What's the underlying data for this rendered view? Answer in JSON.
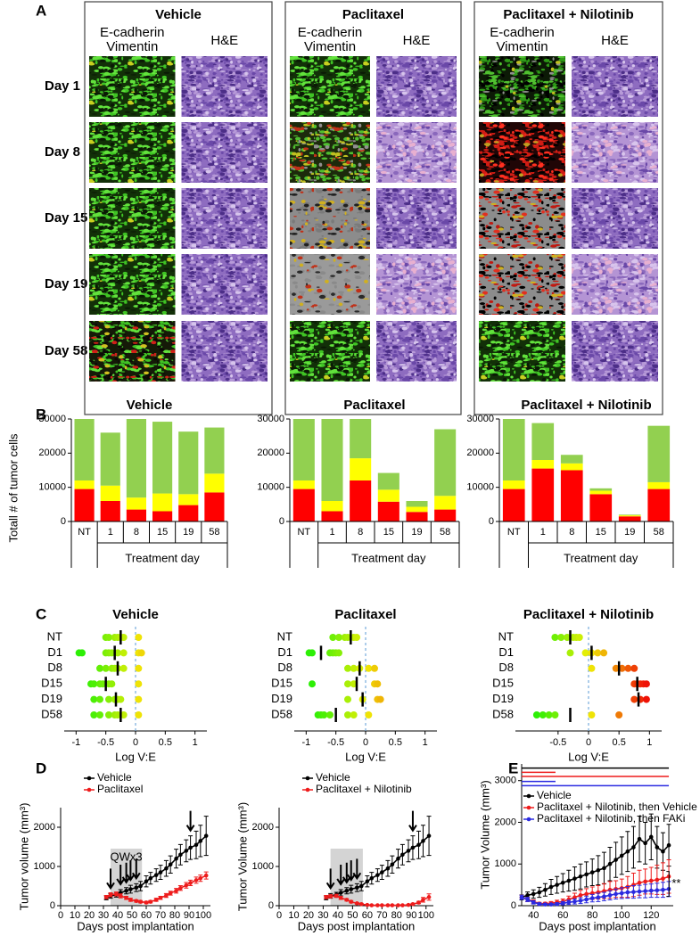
{
  "panel_labels": [
    "A",
    "B",
    "C",
    "D",
    "E"
  ],
  "image_grid": {
    "columns": [
      {
        "title": "Vehicle",
        "markers": [
          "E-cadherin",
          "Vimentin"
        ],
        "stain": "H&E"
      },
      {
        "title": "Paclitaxel",
        "markers": [
          "E-cadherin",
          "Vimentin"
        ],
        "stain": "H&E"
      },
      {
        "title": "Paclitaxel + Nilotinib",
        "markers": [
          "E-cadherin",
          "Vimentin"
        ],
        "stain": "H&E"
      }
    ],
    "rows": [
      "Day 1",
      "Day 8",
      "Day 15",
      "Day 19",
      "Day 58"
    ]
  },
  "chart_data": [
    {
      "type": "stacked_bar",
      "title": "Vehicle",
      "ylabel": "Totall # of tumor cells",
      "xlabel": "Treatment day",
      "categories": [
        "NT",
        "1",
        "8",
        "15",
        "19",
        "58"
      ],
      "ylim": [
        0,
        30000
      ],
      "yticks": [
        0,
        10000,
        20000,
        30000
      ],
      "series": [
        {
          "color": "#ff0000",
          "values": [
            9500,
            6000,
            3500,
            3000,
            4800,
            8500
          ]
        },
        {
          "color": "#ffff00",
          "values": [
            2500,
            4500,
            3500,
            5200,
            3200,
            5500
          ]
        },
        {
          "color": "#92d050",
          "values": [
            18000,
            15500,
            23000,
            21000,
            18300,
            13500
          ]
        }
      ]
    },
    {
      "type": "stacked_bar",
      "title": "Paclitaxel",
      "xlabel": "Treatment day",
      "categories": [
        "NT",
        "1",
        "8",
        "15",
        "19",
        "58"
      ],
      "ylim": [
        0,
        30000
      ],
      "yticks": [
        0,
        10000,
        20000,
        30000
      ],
      "series": [
        {
          "color": "#ff0000",
          "values": [
            9500,
            3000,
            12000,
            5800,
            2800,
            3500
          ]
        },
        {
          "color": "#ffff00",
          "values": [
            2500,
            3000,
            6500,
            3500,
            1500,
            4000
          ]
        },
        {
          "color": "#92d050",
          "values": [
            18000,
            24000,
            11500,
            4900,
            1700,
            19500
          ]
        }
      ]
    },
    {
      "type": "stacked_bar",
      "title": "Paclitaxel + Nilotinib",
      "xlabel": "Treatment day",
      "categories": [
        "NT",
        "1",
        "8",
        "15",
        "19",
        "58"
      ],
      "ylim": [
        0,
        30000
      ],
      "yticks": [
        0,
        10000,
        20000,
        30000
      ],
      "series": [
        {
          "color": "#ff0000",
          "values": [
            9500,
            15500,
            15000,
            8000,
            1500,
            9500
          ]
        },
        {
          "color": "#ffff00",
          "values": [
            2500,
            2500,
            2000,
            1000,
            300,
            2000
          ]
        },
        {
          "color": "#92d050",
          "values": [
            18000,
            10800,
            2500,
            700,
            200,
            16500
          ]
        }
      ]
    },
    {
      "type": "dot",
      "title": "Vehicle",
      "xlabel": "Log V:E",
      "xlim": [
        -1.2,
        1.2
      ],
      "xticks": [
        -1,
        -0.5,
        0,
        0.5,
        1
      ],
      "reference_line": 0,
      "categories": [
        "NT",
        "D1",
        "D8",
        "D15",
        "D19",
        "D58"
      ],
      "points": [
        [
          -0.5,
          -0.45,
          -0.35,
          -0.3,
          -0.25,
          -0.2,
          0.05
        ],
        [
          -0.95,
          -0.9,
          -0.5,
          -0.45,
          -0.4,
          -0.3,
          -0.2,
          0.05,
          0.1
        ],
        [
          -0.6,
          -0.5,
          -0.4,
          -0.35,
          -0.3,
          -0.2,
          0.05
        ],
        [
          -0.75,
          -0.7,
          -0.6,
          -0.55,
          -0.45,
          -0.4,
          0.05
        ],
        [
          -0.7,
          -0.6,
          -0.45,
          -0.35,
          -0.3,
          -0.25,
          0.05
        ],
        [
          -0.7,
          -0.6,
          -0.45,
          -0.35,
          -0.3,
          -0.2,
          0.05
        ]
      ],
      "medians": [
        -0.25,
        -0.35,
        -0.3,
        -0.5,
        -0.33,
        -0.25
      ]
    },
    {
      "type": "dot",
      "title": "Paclitaxel",
      "xlabel": "Log V:E",
      "xlim": [
        -1.2,
        1.2
      ],
      "xticks": [
        -1,
        -0.5,
        0,
        0.5,
        1
      ],
      "reference_line": 0,
      "categories": [
        "NT",
        "D1",
        "D8",
        "D15",
        "D19",
        "D58"
      ],
      "points": [
        [
          -0.55,
          -0.45,
          -0.35,
          -0.3,
          -0.2,
          -0.15
        ],
        [
          -0.95,
          -0.9,
          -0.6,
          -0.55,
          -0.5,
          -0.45
        ],
        [
          -0.3,
          -0.2,
          -0.1,
          0.05,
          0.15
        ],
        [
          -0.9,
          -0.3,
          -0.2,
          0.15,
          0.2
        ],
        [
          -0.3,
          -0.05,
          0.2,
          0.25
        ],
        [
          -0.8,
          -0.75,
          -0.7,
          -0.6,
          -0.3,
          -0.2,
          0.05
        ]
      ],
      "medians": [
        -0.25,
        -0.75,
        -0.1,
        -0.15,
        -0.05,
        -0.5
      ]
    },
    {
      "type": "dot",
      "title": "Paclitaxel + Nilotinib",
      "xlabel": "Log V:E",
      "xlim": [
        -1.2,
        1.2
      ],
      "xticks": [
        -0.5,
        0,
        0.5,
        1
      ],
      "reference_line": 0,
      "categories": [
        "NT",
        "D1",
        "D8",
        "D15",
        "D19",
        "D58"
      ],
      "points": [
        [
          -0.55,
          -0.45,
          -0.35,
          -0.25,
          -0.2,
          -0.15
        ],
        [
          -0.3,
          -0.05,
          0.05,
          0.15,
          0.25
        ],
        [
          0.05,
          0.45,
          0.55,
          0.65,
          0.75
        ],
        [
          0.75,
          0.8,
          0.85,
          0.9,
          0.95
        ],
        [
          0.75,
          0.85,
          0.95
        ],
        [
          -0.85,
          -0.75,
          -0.65,
          -0.55,
          0.05,
          0.5
        ]
      ],
      "medians": [
        -0.3,
        0.05,
        0.5,
        0.8,
        0.82,
        -0.3
      ]
    },
    {
      "type": "line",
      "xlabel": "Days post implantation",
      "ylabel": "Tumor volume (mm³)",
      "xlim": [
        0,
        105
      ],
      "xticks": [
        0,
        10,
        20,
        30,
        40,
        50,
        60,
        70,
        80,
        90,
        100
      ],
      "ylim": [
        0,
        2500
      ],
      "yticks": [
        0,
        1000,
        2000
      ],
      "shade": {
        "range": [
          35,
          57
        ],
        "label": "QWx3"
      },
      "arrows_x": [
        35,
        42,
        46,
        49,
        53,
        91
      ],
      "x": [
        32,
        35,
        39,
        42,
        46,
        49,
        53,
        56,
        60,
        63,
        67,
        70,
        74,
        77,
        81,
        84,
        88,
        91,
        95,
        98,
        102
      ],
      "series": [
        {
          "name": "Vehicle",
          "color": "#000000",
          "values": [
            200,
            250,
            280,
            330,
            380,
            420,
            460,
            500,
            620,
            700,
            780,
            850,
            950,
            1050,
            1200,
            1300,
            1400,
            1480,
            1550,
            1650,
            1780
          ],
          "errors": [
            50,
            60,
            60,
            80,
            80,
            100,
            100,
            120,
            140,
            150,
            160,
            180,
            200,
            220,
            240,
            260,
            280,
            300,
            350,
            400,
            500
          ]
        },
        {
          "name": "Paclitaxel",
          "color": "#ee1c1c",
          "values": [
            220,
            280,
            300,
            250,
            200,
            150,
            120,
            100,
            80,
            100,
            150,
            200,
            260,
            320,
            380,
            450,
            520,
            580,
            650,
            700,
            770
          ],
          "errors": [
            40,
            50,
            50,
            50,
            40,
            40,
            30,
            30,
            30,
            30,
            40,
            40,
            50,
            50,
            60,
            60,
            70,
            70,
            80,
            80,
            90
          ]
        }
      ]
    },
    {
      "type": "line",
      "xlabel": "Days post implantation",
      "ylabel": "Tumor Volume (mm³)",
      "xlim": [
        0,
        105
      ],
      "xticks": [
        0,
        10,
        20,
        30,
        40,
        50,
        60,
        70,
        80,
        90,
        100
      ],
      "ylim": [
        0,
        2500
      ],
      "yticks": [
        0,
        1000,
        2000
      ],
      "shade": {
        "range": [
          35,
          57
        ]
      },
      "arrows_x": [
        35,
        42,
        46,
        49,
        53,
        91
      ],
      "x": [
        32,
        35,
        39,
        42,
        46,
        49,
        53,
        56,
        60,
        63,
        67,
        70,
        74,
        77,
        81,
        84,
        88,
        91,
        95,
        98,
        102
      ],
      "series": [
        {
          "name": "Vehicle",
          "color": "#000000",
          "values": [
            200,
            250,
            280,
            330,
            380,
            420,
            460,
            500,
            620,
            700,
            780,
            850,
            950,
            1050,
            1200,
            1300,
            1400,
            1480,
            1550,
            1650,
            1780
          ],
          "errors": [
            50,
            60,
            60,
            80,
            80,
            100,
            100,
            120,
            140,
            150,
            160,
            180,
            200,
            220,
            240,
            260,
            280,
            300,
            350,
            400,
            500
          ]
        },
        {
          "name": "Paclitaxel + Nilotinib",
          "color": "#ee1c1c",
          "values": [
            220,
            240,
            250,
            200,
            150,
            100,
            60,
            40,
            20,
            10,
            10,
            10,
            10,
            10,
            10,
            10,
            20,
            40,
            80,
            150,
            220
          ],
          "errors": [
            40,
            40,
            40,
            40,
            30,
            30,
            20,
            20,
            10,
            10,
            10,
            10,
            10,
            10,
            10,
            10,
            10,
            20,
            30,
            60,
            80
          ]
        }
      ]
    },
    {
      "type": "line",
      "xlabel": "Days post implantation",
      "ylabel": "Tumor Volume (mm³)",
      "xlim": [
        32,
        135
      ],
      "xticks": [
        40,
        60,
        80,
        100,
        120
      ],
      "ylim": [
        0,
        3400
      ],
      "yticks": [
        0,
        1000,
        2000,
        3000
      ],
      "brackets": [
        {
          "x": [
            32,
            132
          ],
          "y": 3300,
          "color": "#000000"
        },
        {
          "x": [
            32,
            55
          ],
          "y": 3200,
          "color": "#ee1c1c"
        },
        {
          "x": [
            32,
            132
          ],
          "y": 3100,
          "color": "#ee1c1c"
        },
        {
          "x": [
            32,
            55
          ],
          "y": 2980,
          "color": "#2a2ae0"
        },
        {
          "x": [
            32,
            132
          ],
          "y": 2880,
          "color": "#2a2ae0"
        }
      ],
      "annotation": {
        "text": "**",
        "x": 134,
        "y": 520
      },
      "x": [
        32,
        36,
        40,
        44,
        48,
        52,
        56,
        60,
        64,
        68,
        72,
        76,
        80,
        84,
        88,
        92,
        96,
        100,
        104,
        108,
        112,
        116,
        120,
        124,
        128,
        132
      ],
      "series": [
        {
          "name": "Vehicle",
          "color": "#000000",
          "values": [
            200,
            250,
            280,
            320,
            380,
            450,
            500,
            550,
            600,
            650,
            700,
            750,
            800,
            850,
            900,
            1000,
            1100,
            1200,
            1300,
            1400,
            1600,
            1500,
            1650,
            1400,
            1300,
            1450
          ],
          "errors": [
            60,
            80,
            100,
            120,
            150,
            180,
            200,
            220,
            250,
            280,
            300,
            300,
            320,
            350,
            380,
            400,
            420,
            450,
            480,
            500,
            550,
            500,
            550,
            500,
            450,
            500
          ]
        },
        {
          "name": "Paclitaxel + Nilotinib, then Vehicle",
          "color": "#ee1c1c",
          "values": [
            200,
            150,
            100,
            50,
            50,
            60,
            80,
            100,
            150,
            200,
            250,
            280,
            300,
            320,
            350,
            380,
            400,
            420,
            450,
            500,
            550,
            580,
            600,
            620,
            650,
            700
          ],
          "errors": [
            50,
            50,
            40,
            30,
            30,
            40,
            50,
            60,
            80,
            100,
            120,
            130,
            150,
            160,
            180,
            200,
            200,
            220,
            250,
            280,
            300,
            300,
            320,
            350,
            380,
            400
          ]
        },
        {
          "name": "Paclitaxel + Nilotinib, then FAKi",
          "color": "#2a2ae0",
          "values": [
            200,
            150,
            80,
            40,
            30,
            30,
            40,
            60,
            80,
            100,
            120,
            150,
            180,
            200,
            220,
            250,
            280,
            300,
            320,
            330,
            340,
            350,
            360,
            370,
            380,
            400
          ],
          "errors": [
            50,
            50,
            40,
            30,
            20,
            20,
            30,
            40,
            50,
            60,
            70,
            80,
            90,
            100,
            100,
            110,
            120,
            130,
            140,
            150,
            150,
            160,
            160,
            170,
            180,
            180
          ]
        }
      ]
    }
  ]
}
